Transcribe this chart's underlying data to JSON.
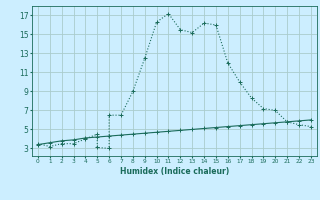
{
  "xlabel": "Humidex (Indice chaleur)",
  "bg_color": "#cceeff",
  "grid_color": "#aacccc",
  "line_color": "#1a6b5a",
  "xlim": [
    -0.5,
    23.5
  ],
  "ylim": [
    2.2,
    18.0
  ],
  "xticks": [
    0,
    1,
    2,
    3,
    4,
    5,
    6,
    7,
    8,
    9,
    10,
    11,
    12,
    13,
    14,
    15,
    16,
    17,
    18,
    19,
    20,
    21,
    22,
    23
  ],
  "yticks": [
    3,
    5,
    7,
    9,
    11,
    13,
    15,
    17
  ],
  "curve1_x": [
    0,
    1,
    2,
    3,
    4,
    5,
    5,
    6,
    6,
    7,
    8,
    9,
    10,
    11,
    12,
    13,
    14,
    15,
    16,
    17,
    18,
    19,
    20,
    21,
    22,
    23
  ],
  "curve1_y": [
    3.5,
    3.2,
    3.5,
    3.5,
    4.0,
    4.5,
    3.1,
    3.0,
    6.5,
    6.5,
    9.0,
    12.5,
    16.3,
    17.2,
    15.5,
    15.2,
    16.2,
    16.0,
    12.0,
    10.0,
    8.3,
    7.2,
    7.0,
    5.8,
    5.5,
    5.3
  ],
  "curve2_x": [
    0,
    1,
    2,
    3,
    4,
    5,
    6,
    7,
    8,
    9,
    10,
    11,
    12,
    13,
    14,
    15,
    16,
    17,
    18,
    19,
    20,
    21,
    22,
    23
  ],
  "curve2_y": [
    3.4,
    3.6,
    3.8,
    3.9,
    4.1,
    4.2,
    4.3,
    4.4,
    4.5,
    4.6,
    4.7,
    4.8,
    4.9,
    5.0,
    5.1,
    5.2,
    5.3,
    5.4,
    5.5,
    5.6,
    5.7,
    5.8,
    5.9,
    6.0
  ]
}
